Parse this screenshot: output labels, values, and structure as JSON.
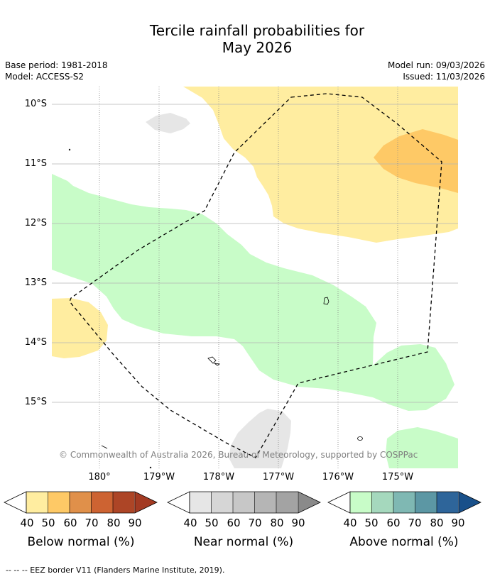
{
  "title": {
    "line1": "Tercile rainfall probabilities for",
    "line2": "May 2026"
  },
  "meta": {
    "base_period": "Base period: 1981-2018",
    "model": "Model: ACCESS-S2",
    "model_run": "Model run: 09/03/2026",
    "issued": "Issued: 11/03/2026"
  },
  "axes": {
    "lat_labels": [
      "10°S",
      "11°S",
      "12°S",
      "13°S",
      "14°S",
      "15°S"
    ],
    "lon_labels": [
      "180°",
      "179°W",
      "178°W",
      "177°W",
      "176°W",
      "175°W"
    ]
  },
  "copyright": "© Commonwealth of Australia 2026, Bureau of Meteorology, supported by COSPPac",
  "legend": {
    "ticks": [
      "40",
      "50",
      "60",
      "70",
      "80",
      "90"
    ],
    "below": {
      "label": "Below normal (%)",
      "colors": [
        "#ffeda0",
        "#fec966",
        "#e0904a",
        "#cd6332",
        "#ad4526",
        "#a33a22"
      ]
    },
    "near": {
      "label": "Near normal (%)",
      "colors": [
        "#e6e6e6",
        "#d6d6d6",
        "#c7c7c7",
        "#b5b5b5",
        "#a3a3a3",
        "#8a8a8a"
      ]
    },
    "above": {
      "label": "Above normal (%)",
      "colors": [
        "#c8fcc8",
        "#a5d8bd",
        "#7fb8b3",
        "#5c97a4",
        "#2e659a",
        "#19508a"
      ]
    }
  },
  "map_colors": {
    "below_light": "#ffeda0",
    "below_mid": "#fec966",
    "near_light": "#e6e6e6",
    "above_light": "#c8fcc8"
  },
  "footnote": "--  --  -- EEZ border V11 (Flanders Marine Institute, 2019)."
}
